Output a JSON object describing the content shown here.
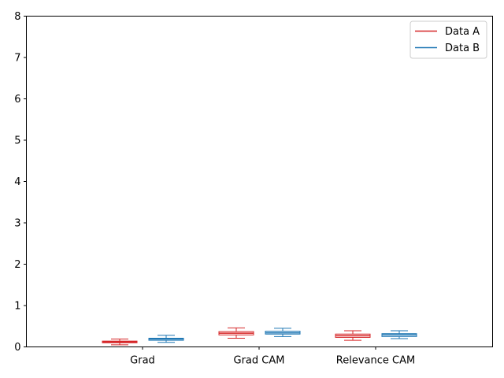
{
  "chart_data": {
    "type": "box",
    "categories": [
      "Grad",
      "Grad CAM",
      "Relevance CAM"
    ],
    "ylim": [
      0,
      8
    ],
    "yticks": [
      "0",
      "1",
      "2",
      "3",
      "4",
      "5",
      "6",
      "7",
      "8"
    ],
    "grid": false,
    "legend_position": "top-right",
    "series": [
      {
        "name": "Data A",
        "color": "#d62728",
        "boxes": [
          {
            "category": "Grad",
            "whisker_low": 0.05,
            "q1": 0.1,
            "median": 0.12,
            "q3": 0.14,
            "whisker_high": 0.19
          },
          {
            "category": "Grad CAM",
            "whisker_low": 0.21,
            "q1": 0.29,
            "median": 0.33,
            "q3": 0.37,
            "whisker_high": 0.46
          },
          {
            "category": "Relevance CAM",
            "whisker_low": 0.16,
            "q1": 0.23,
            "median": 0.27,
            "q3": 0.31,
            "whisker_high": 0.39
          }
        ]
      },
      {
        "name": "Data B",
        "color": "#1f77b4",
        "boxes": [
          {
            "category": "Grad",
            "whisker_low": 0.11,
            "q1": 0.16,
            "median": 0.19,
            "q3": 0.21,
            "whisker_high": 0.28
          },
          {
            "category": "Grad CAM",
            "whisker_low": 0.25,
            "q1": 0.31,
            "median": 0.34,
            "q3": 0.38,
            "whisker_high": 0.45
          },
          {
            "category": "Relevance CAM",
            "whisker_low": 0.2,
            "q1": 0.25,
            "median": 0.29,
            "q3": 0.32,
            "whisker_high": 0.39
          }
        ]
      }
    ]
  }
}
